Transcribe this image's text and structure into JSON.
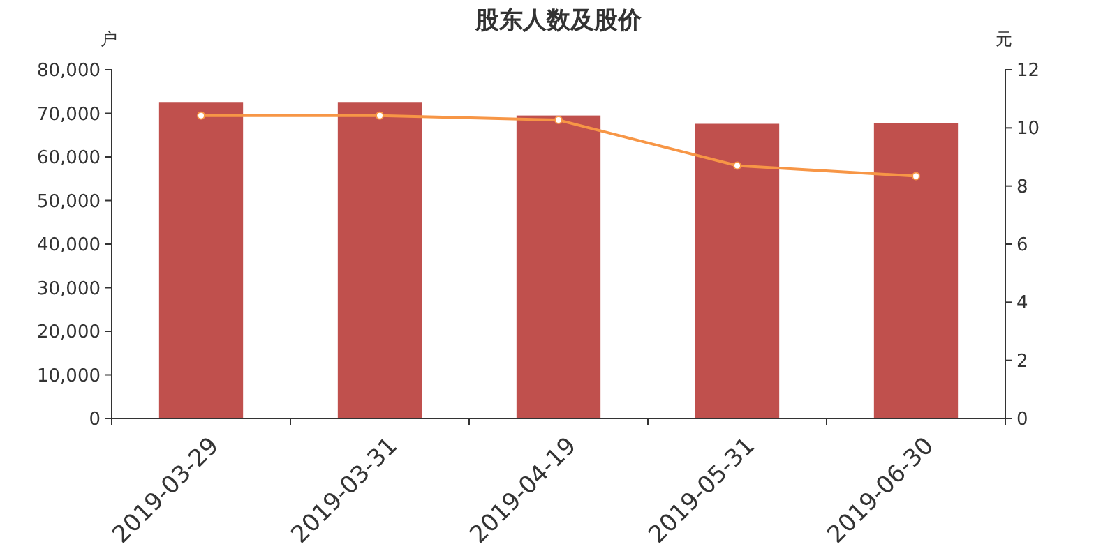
{
  "chart_data": {
    "type": "bar",
    "title": "股东人数及股价",
    "ylabel": "户",
    "y2label": "元",
    "categories": [
      "2019-03-29",
      "2019-03-31",
      "2019-04-19",
      "2019-05-31",
      "2019-06-30"
    ],
    "series": [
      {
        "color": "#c0504d",
        "values": [
          72600,
          72600,
          69500,
          67600,
          67700
        ]
      },
      {
        "type": "line",
        "axis": "y2",
        "color": "#f79646",
        "marker": "circle",
        "values": [
          10.42,
          10.42,
          10.27,
          8.7,
          8.34
        ]
      }
    ],
    "ylim": [
      0,
      80000
    ],
    "yticks": [
      {
        "value": 0,
        "label": "0"
      },
      {
        "value": 10000,
        "label": "10,000"
      },
      {
        "value": 20000,
        "label": "20,000"
      },
      {
        "value": 30000,
        "label": "30,000"
      },
      {
        "value": 40000,
        "label": "40,000"
      },
      {
        "value": 50000,
        "label": "50,000"
      },
      {
        "value": 60000,
        "label": "60,000"
      },
      {
        "value": 70000,
        "label": "70,000"
      },
      {
        "value": 80000,
        "label": "80,000"
      }
    ],
    "y2lim": [
      0,
      12
    ],
    "y2ticks": [
      0,
      2,
      4,
      6,
      8,
      10,
      12
    ],
    "grid": false
  }
}
